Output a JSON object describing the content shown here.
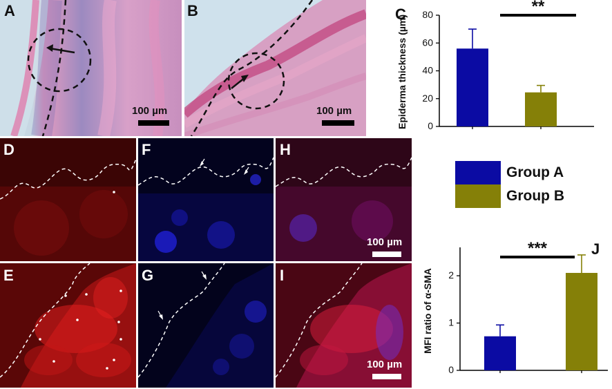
{
  "panels": {
    "A": {
      "letter": "A",
      "scale": "100 µm"
    },
    "B": {
      "letter": "B",
      "scale": "100 µm"
    },
    "C": {
      "letter": "C"
    },
    "D": {
      "letter": "D"
    },
    "E": {
      "letter": "E"
    },
    "F": {
      "letter": "F"
    },
    "G": {
      "letter": "G"
    },
    "H": {
      "letter": "H",
      "scale": "100 µm"
    },
    "I": {
      "letter": "I",
      "scale": "100 µm"
    },
    "J": {
      "letter": "J"
    }
  },
  "legend": [
    {
      "label": "Group A",
      "color": "#0b0ba3"
    },
    {
      "label": "Group B",
      "color": "#858008"
    }
  ],
  "chart_data": [
    {
      "id": "C",
      "type": "bar",
      "categories": [
        "Group A",
        "Group B"
      ],
      "values": [
        56,
        24.5
      ],
      "errors": [
        14,
        5
      ],
      "colors": [
        "#0b0ba3",
        "#858008"
      ],
      "ylabel": "Epiderma thickness (µm)",
      "ylim": [
        0,
        80
      ],
      "yticks": [
        "0",
        "20",
        "40",
        "60",
        "80"
      ],
      "significance": "**"
    },
    {
      "id": "J",
      "type": "bar",
      "categories": [
        "Group A",
        "Group B"
      ],
      "values": [
        0.72,
        2.06
      ],
      "errors": [
        0.24,
        0.38
      ],
      "colors": [
        "#0b0ba3",
        "#858008"
      ],
      "ylabel": "MFI ratio of α-SMA",
      "ylim": [
        0,
        2.6
      ],
      "yticks": [
        "0",
        "1",
        "2"
      ],
      "significance": "***"
    }
  ]
}
